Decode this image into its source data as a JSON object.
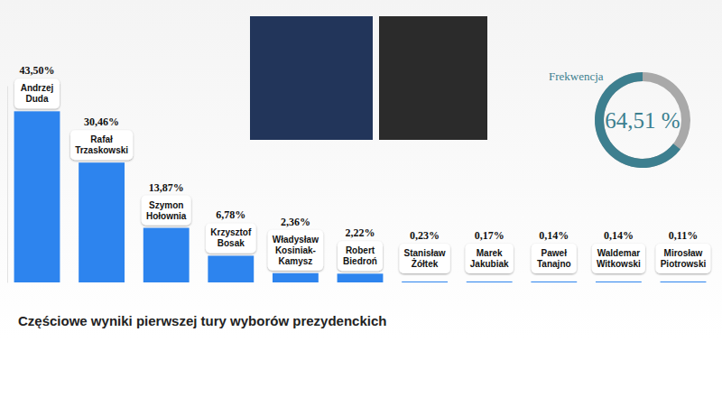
{
  "chart_data": [
    {
      "type": "bar",
      "title": "Częściowe wyniki pierwszej tury wyborów prezydenckich",
      "categories": [
        "Andrzej\nDuda",
        "Rafał\nTrzaskowski",
        "Szymon\nHołownia",
        "Krzysztof\nBosak",
        "Władysław\nKosiniak-\nKamysz",
        "Robert\nBiedroń",
        "Stanisław\nŻółtek",
        "Marek\nJakubiak",
        "Paweł\nTanajno",
        "Waldemar\nWitkowski",
        "Mirosław\nPiotrowski"
      ],
      "values": [
        43.5,
        30.46,
        13.87,
        6.78,
        2.36,
        2.22,
        0.23,
        0.17,
        0.14,
        0.14,
        0.11
      ],
      "value_labels": [
        "43,50%",
        "30,46%",
        "13,87%",
        "6,78%",
        "2,36%",
        "2,22%",
        "0,23%",
        "0,17%",
        "0,14%",
        "0,14%",
        "0,11%"
      ],
      "color": "#2d84ee",
      "ylim": [
        0,
        50
      ],
      "data_labels": true,
      "tick_labels": false
    },
    {
      "type": "gauge",
      "title": "Frekwencja",
      "values": [
        64.51
      ],
      "value_labels": [
        "64,51 %"
      ],
      "ylim": [
        0,
        100
      ],
      "colors": [
        "#3d7f8f"
      ]
    }
  ]
}
